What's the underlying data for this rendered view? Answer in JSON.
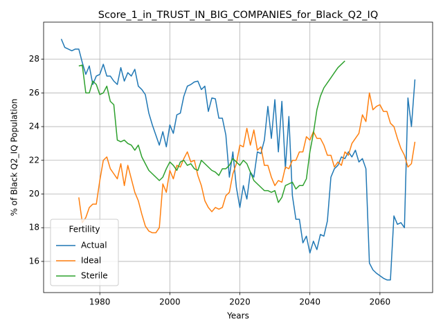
{
  "chart_data": {
    "type": "line",
    "title": "Score_1_in_TRUST_IN_BIG_COMPANIES_for_Black_Q2_IQ",
    "xlabel": "Years",
    "ylabel": "% of Black Q2_IQ Population",
    "legend_title": "Fertility",
    "legend": "lower left",
    "grid": true,
    "x": [
      1969,
      1970,
      1971,
      1972,
      1973,
      1974,
      1975,
      1976,
      1977,
      1978,
      1979,
      1980,
      1981,
      1982,
      1983,
      1984,
      1985,
      1986,
      1987,
      1988,
      1989,
      1990,
      1991,
      1992,
      1993,
      1994,
      1995,
      1996,
      1997,
      1998,
      1999,
      2000,
      2001,
      2002,
      2003,
      2004,
      2005,
      2006,
      2007,
      2008,
      2009,
      2010,
      2011,
      2012,
      2013,
      2014,
      2015,
      2016,
      2017,
      2018,
      2019,
      2020,
      2021,
      2022,
      2023,
      2024,
      2025,
      2026,
      2027,
      2028,
      2029,
      2030,
      2031,
      2032,
      2033,
      2034,
      2035,
      2036,
      2037,
      2038,
      2039,
      2040,
      2041,
      2042,
      2043,
      2044,
      2045,
      2046,
      2047,
      2048,
      2049,
      2050,
      2051,
      2052,
      2053,
      2054,
      2055,
      2056,
      2057,
      2058,
      2059,
      2060,
      2061,
      2062,
      2063,
      2064,
      2065,
      2066,
      2067,
      2068,
      2069,
      2070
    ],
    "xlim": [
      1963.95,
      2075.05
    ],
    "xticks": [
      1980,
      2000,
      2020,
      2040,
      2060
    ],
    "ylim": [
      14.15,
      30.2
    ],
    "yticks": [
      16,
      18,
      20,
      22,
      24,
      26,
      28
    ],
    "series": [
      {
        "name": "Actual",
        "color": "#1f77b4",
        "values": [
          29.2,
          28.7,
          28.6,
          28.5,
          28.6,
          28.6,
          27.8,
          27.1,
          27.6,
          26.5,
          27.0,
          27.1,
          27.7,
          27.0,
          27.0,
          26.7,
          26.5,
          27.5,
          26.7,
          27.2,
          27.0,
          27.4,
          26.4,
          26.2,
          25.9,
          24.8,
          24.1,
          23.5,
          22.9,
          23.7,
          22.8,
          24.1,
          23.6,
          24.7,
          24.8,
          25.8,
          26.4,
          26.5,
          26.65,
          26.7,
          26.2,
          26.4,
          24.9,
          25.7,
          25.65,
          24.5,
          24.5,
          23.5,
          21.0,
          22.5,
          20.4,
          19.2,
          20.5,
          19.7,
          21.3,
          21.0,
          22.5,
          22.4,
          23.2,
          25.2,
          23.3,
          25.6,
          22.5,
          25.5,
          21.5,
          24.6,
          19.9,
          18.5,
          18.5,
          17.1,
          17.5,
          16.5,
          17.2,
          16.7,
          17.6,
          17.5,
          18.4,
          21.0,
          21.5,
          21.7,
          22.2,
          22.1,
          22.5,
          22.2,
          22.6,
          21.9,
          22.1,
          21.5,
          15.9,
          15.5,
          15.3,
          15.15,
          15.0,
          14.9,
          14.9,
          18.7,
          18.2,
          18.3,
          18.0,
          25.7,
          24.0,
          26.8
        ]
      },
      {
        "name": "Ideal",
        "color": "#ff7f0e",
        "values": [
          null,
          null,
          null,
          null,
          null,
          19.8,
          18.3,
          18.6,
          19.2,
          19.4,
          19.4,
          20.8,
          22.0,
          22.2,
          21.5,
          21.2,
          20.9,
          21.8,
          20.5,
          21.7,
          20.9,
          20.1,
          19.6,
          18.8,
          18.1,
          17.8,
          17.7,
          17.7,
          18.0,
          20.6,
          20.1,
          21.4,
          20.9,
          21.7,
          21.6,
          22.1,
          22.5,
          21.9,
          22.0,
          21.1,
          20.5,
          19.6,
          19.2,
          18.95,
          19.2,
          19.1,
          19.2,
          19.9,
          20.1,
          21.2,
          21.8,
          22.9,
          22.8,
          23.9,
          22.9,
          23.8,
          22.6,
          22.8,
          21.7,
          21.7,
          21.0,
          20.5,
          20.8,
          20.7,
          21.6,
          21.5,
          22.0,
          22.0,
          22.5,
          22.5,
          23.4,
          23.2,
          23.7,
          23.3,
          23.3,
          22.9,
          22.3,
          22.3,
          21.6,
          21.9,
          21.7,
          22.5,
          22.3,
          23.0,
          23.3,
          23.6,
          24.7,
          24.3,
          26.0,
          25.0,
          25.2,
          25.3,
          24.9,
          24.9,
          24.2,
          24.0,
          23.3,
          22.7,
          22.3,
          21.6,
          21.8,
          23.1
        ]
      },
      {
        "name": "Sterile",
        "color": "#2ca02c",
        "values": [
          null,
          null,
          null,
          null,
          null,
          27.6,
          27.65,
          26.0,
          26.0,
          26.7,
          26.5,
          25.9,
          26.0,
          26.4,
          25.5,
          25.3,
          23.2,
          23.1,
          23.2,
          23.0,
          22.9,
          22.6,
          22.9,
          22.2,
          21.8,
          21.4,
          21.2,
          21.0,
          20.8,
          21.0,
          21.5,
          21.9,
          21.7,
          21.4,
          21.9,
          22.0,
          21.7,
          21.8,
          21.5,
          21.4,
          22.0,
          21.8,
          21.6,
          21.4,
          21.3,
          21.1,
          21.5,
          21.5,
          21.7,
          22.1,
          21.9,
          21.7,
          22.0,
          21.8,
          21.3,
          20.8,
          20.6,
          20.4,
          20.2,
          20.2,
          20.1,
          20.2,
          19.5,
          19.8,
          20.5,
          20.6,
          20.7,
          20.3,
          20.5,
          20.5,
          20.9,
          22.5,
          23.6,
          25.0,
          25.8,
          26.3,
          26.6,
          26.9,
          27.2,
          27.5,
          27.7,
          27.9,
          null,
          null,
          null,
          null,
          null,
          null,
          null,
          null,
          null,
          null,
          null,
          null,
          null,
          null,
          null,
          null,
          null,
          null,
          null,
          null
        ]
      }
    ]
  }
}
